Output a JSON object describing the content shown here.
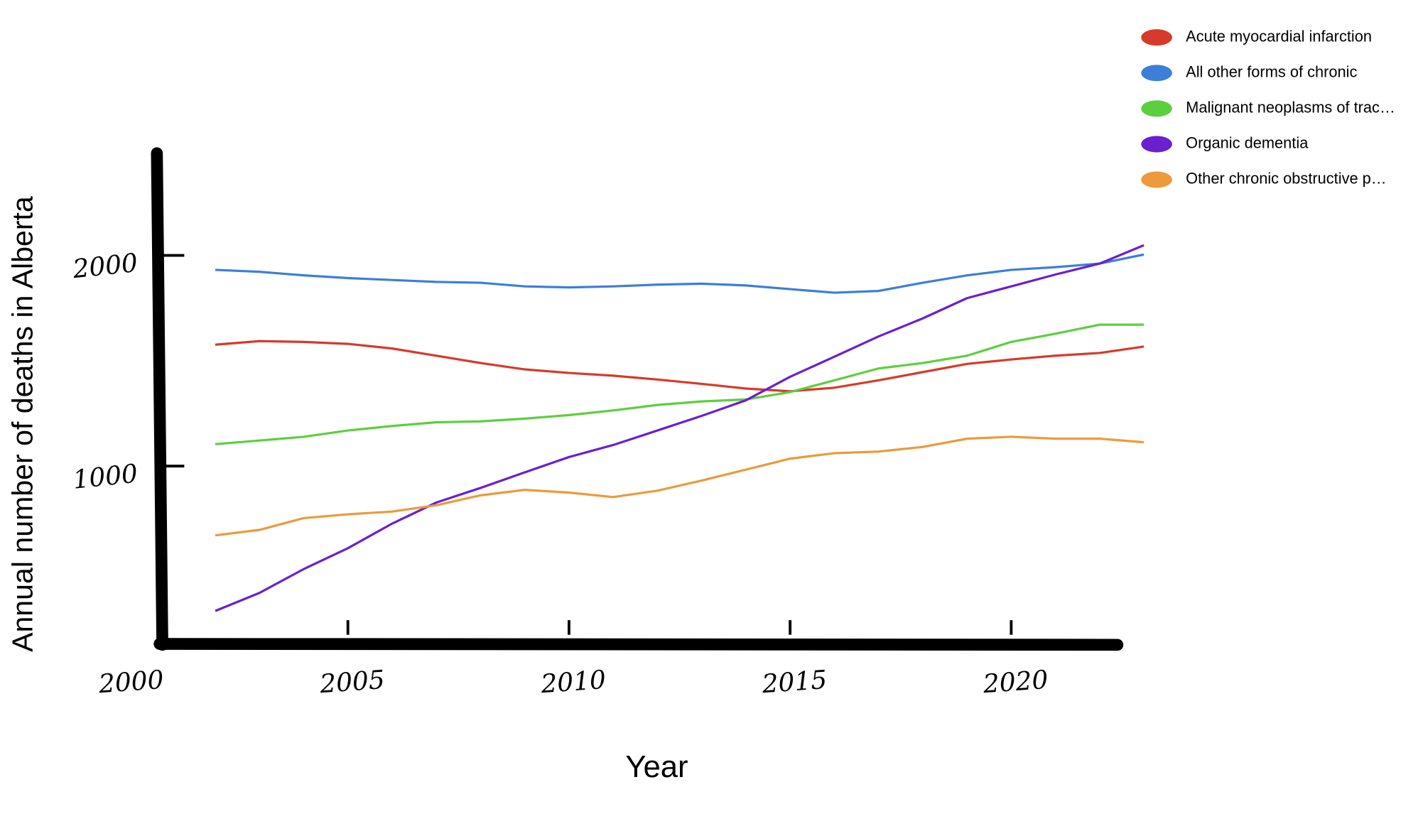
{
  "chart_data": {
    "type": "line",
    "x_label": "Year",
    "y_label": "Annual number of deaths in Alberta",
    "x": [
      2002,
      2003,
      2004,
      2005,
      2006,
      2007,
      2008,
      2009,
      2010,
      2011,
      2012,
      2013,
      2014,
      2015,
      2016,
      2017,
      2018,
      2019,
      2020,
      2021,
      2022,
      2023
    ],
    "series": [
      {
        "name": "Acute myocardial infarction",
        "color": "#d63a2b",
        "values": [
          1576,
          1593,
          1589,
          1580,
          1558,
          1524,
          1489,
          1459,
          1442,
          1429,
          1411,
          1390,
          1368,
          1355,
          1372,
          1407,
          1446,
          1485,
          1506,
          1524,
          1537,
          1567
        ]
      },
      {
        "name": "All other forms of chronic",
        "color": "#3b7fd9",
        "values": [
          1931,
          1922,
          1905,
          1892,
          1883,
          1874,
          1870,
          1853,
          1848,
          1853,
          1861,
          1866,
          1857,
          1840,
          1823,
          1831,
          1870,
          1905,
          1931,
          1944,
          1961,
          2004
        ]
      },
      {
        "name": "Malignant neoplasms of trac…",
        "color": "#5ccf3e",
        "values": [
          1104,
          1121,
          1139,
          1169,
          1190,
          1208,
          1212,
          1225,
          1242,
          1264,
          1290,
          1307,
          1316,
          1351,
          1407,
          1463,
          1489,
          1524,
          1589,
          1628,
          1671,
          1671
        ]
      },
      {
        "name": "Organic dementia",
        "color": "#6b1fcf",
        "values": [
          312,
          398,
          511,
          610,
          727,
          827,
          896,
          970,
          1043,
          1100,
          1169,
          1238,
          1312,
          1424,
          1519,
          1615,
          1701,
          1797,
          1853,
          1909,
          1961,
          2048
        ]
      },
      {
        "name": "Other chronic obstructive p…",
        "color": "#ec9a3c",
        "values": [
          671,
          697,
          753,
          771,
          784,
          814,
          861,
          887,
          874,
          853,
          883,
          931,
          983,
          1035,
          1061,
          1069,
          1091,
          1130,
          1139,
          1130,
          1130,
          1113
        ]
      }
    ],
    "xlim": [
      2000,
      2023
    ],
    "xticks": [
      2000,
      2005,
      2010,
      2015,
      2020
    ],
    "ylim": [
      0,
      2500
    ],
    "yticks": [
      1000,
      2000
    ],
    "legend": "top-right"
  }
}
